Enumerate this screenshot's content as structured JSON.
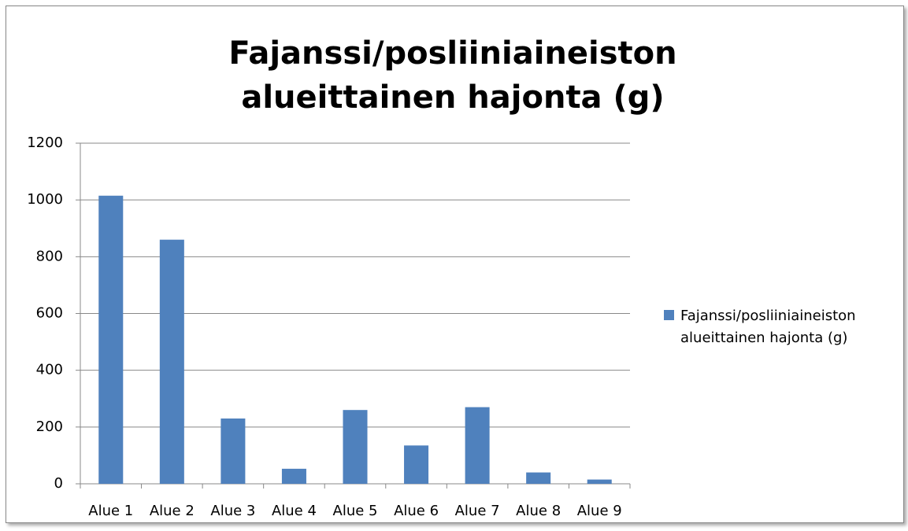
{
  "chart_data": {
    "type": "bar",
    "title": "Fajanssi/posliiniaineiston alueittainen hajonta (g)",
    "categories": [
      "Alue 1",
      "Alue 2",
      "Alue 3",
      "Alue 4",
      "Alue 5",
      "Alue 6",
      "Alue 7",
      "Alue 8",
      "Alue 9"
    ],
    "series": [
      {
        "name": "Fajanssi/posliiniaineiston alueittainen hajonta (g)",
        "color": "#4f81bd",
        "values": [
          1015,
          860,
          230,
          53,
          260,
          135,
          270,
          40,
          15
        ]
      }
    ],
    "ylim": [
      0,
      1200
    ],
    "yticks": [
      0,
      200,
      400,
      600,
      800,
      1000,
      1200
    ],
    "grid": true,
    "legend": "right"
  }
}
